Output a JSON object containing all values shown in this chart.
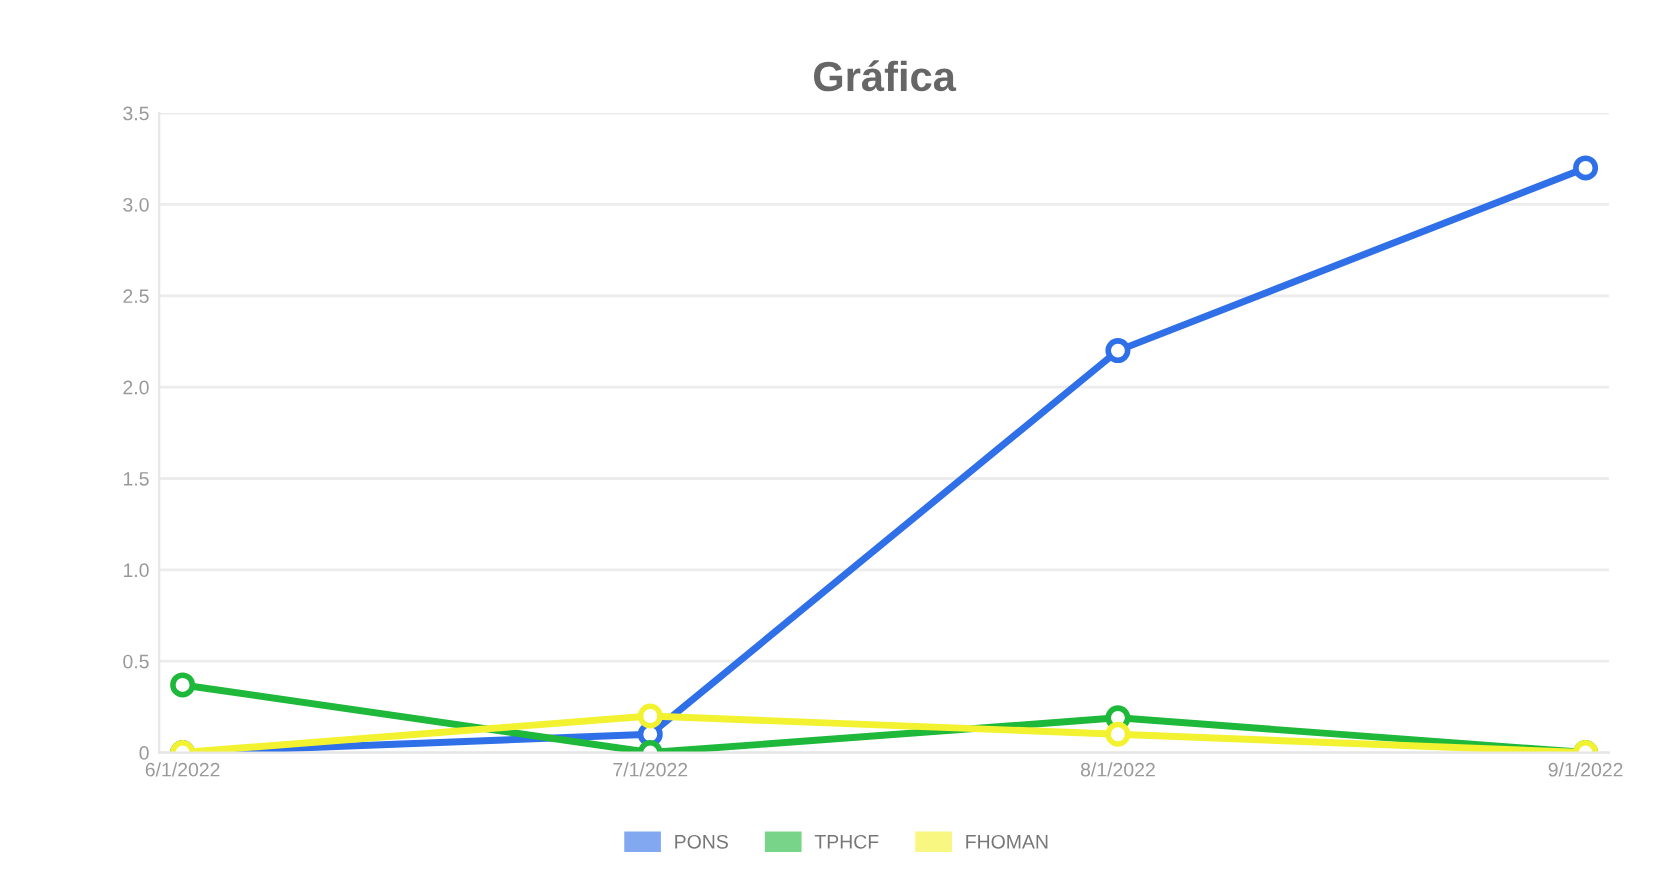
{
  "chart_data": {
    "type": "line",
    "title": "Gráfica",
    "categories": [
      "6/1/2022",
      "7/1/2022",
      "8/1/2022",
      "9/1/2022"
    ],
    "series": [
      {
        "name": "PONS",
        "color": "#2f6fe8",
        "values": [
          0,
          0.1,
          2.2,
          3.2
        ]
      },
      {
        "name": "TPHCF",
        "color": "#1eb83a",
        "values": [
          0.37,
          0,
          0.19,
          0
        ]
      },
      {
        "name": "FHOMAN",
        "color": "#f2f230",
        "values": [
          0,
          0.2,
          0.1,
          0
        ]
      }
    ],
    "ylim": [
      0,
      3.5
    ],
    "yticks": [
      0,
      0.5,
      {
        "value": 1,
        "label": "1.0"
      },
      1.5,
      {
        "value": 2,
        "label": "2.0"
      },
      2.5,
      {
        "value": 3,
        "label": "3.0"
      },
      3.5
    ],
    "grid": "y",
    "legend": "bottom",
    "marker": "circle",
    "line_style": "solid"
  }
}
